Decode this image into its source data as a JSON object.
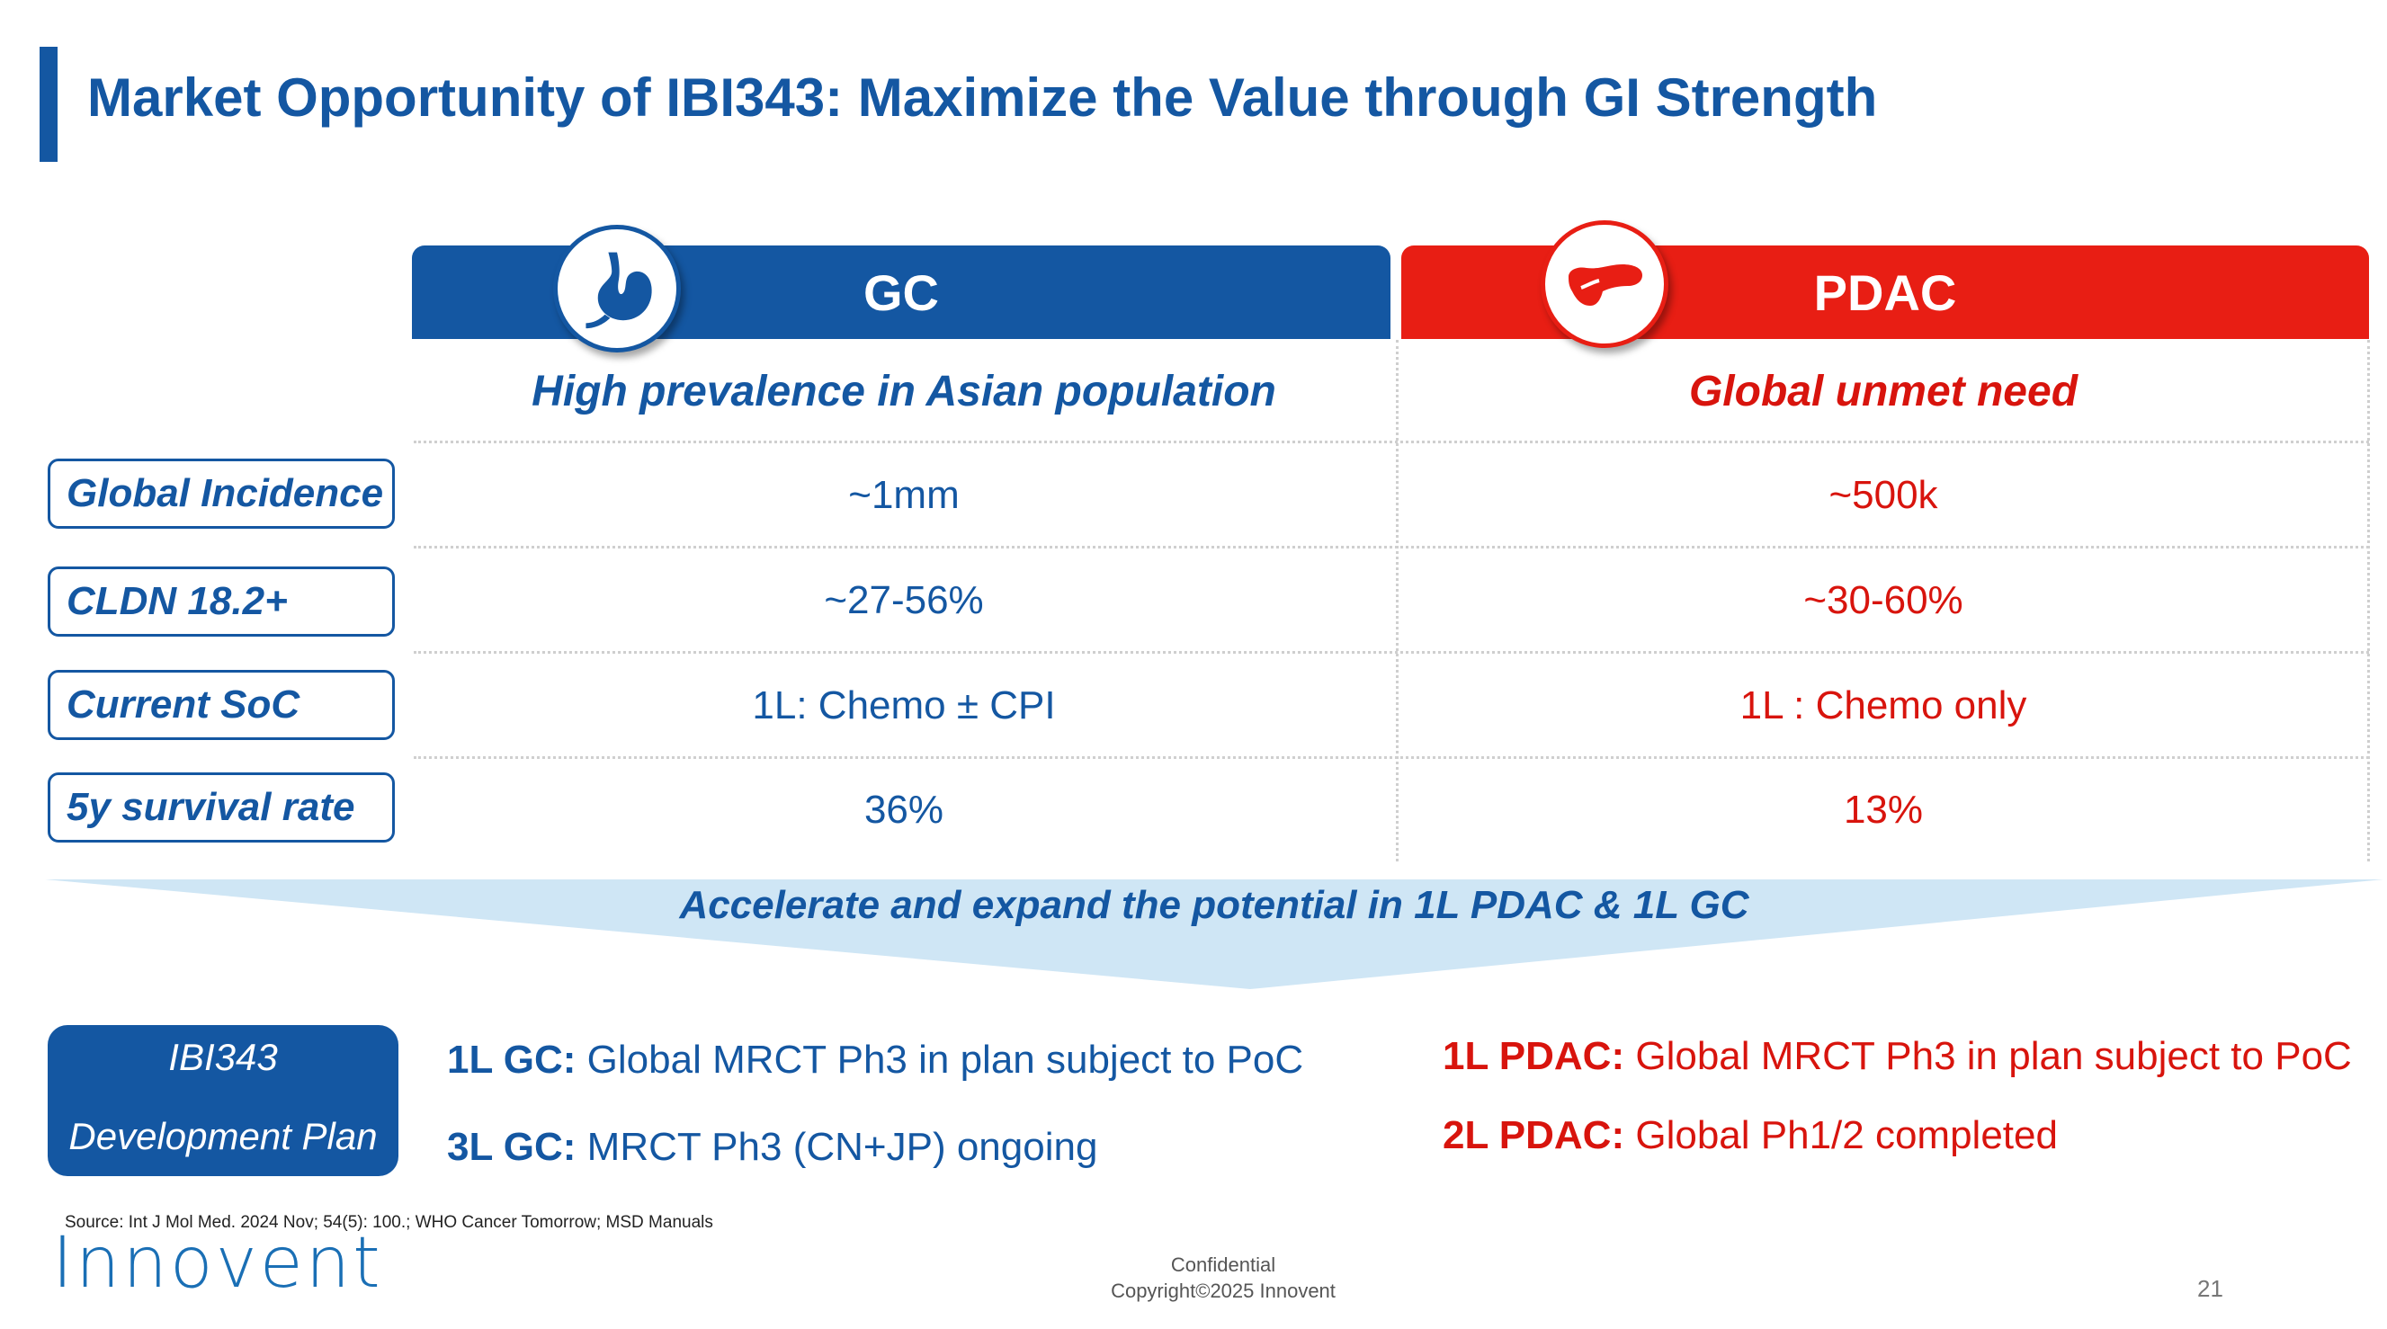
{
  "title": "Market Opportunity of IBI343: Maximize the Value through GI Strength",
  "colors": {
    "blue": "#1457a2",
    "red": "#e81e14",
    "chevron": "#cfe6f5"
  },
  "columns": {
    "gc": {
      "header": "GC",
      "subtitle": "High prevalence in Asian population",
      "icon": "stomach-icon"
    },
    "pdac": {
      "header": "PDAC",
      "subtitle": "Global unmet need",
      "icon": "pancreas-icon"
    }
  },
  "rows": [
    {
      "label": "Global Incidence",
      "gc": "~1mm",
      "pdac": "~500k"
    },
    {
      "label": "CLDN 18.2+",
      "gc": "~27-56%",
      "pdac": "~30-60%"
    },
    {
      "label": "Current SoC",
      "gc": "1L: Chemo ± CPI",
      "pdac": "1L : Chemo only"
    },
    {
      "label": "5y survival rate",
      "gc": "36%",
      "pdac": "13%"
    }
  ],
  "banner": "Accelerate and expand the potential in 1L PDAC & 1L GC",
  "plan": {
    "box_line1": "IBI343",
    "box_line2": "Development Plan",
    "gc": [
      {
        "label": "1L GC:",
        "text": "Global MRCT Ph3 in plan subject to PoC"
      },
      {
        "label": "3L GC:",
        "text": "MRCT Ph3 (CN+JP) ongoing"
      }
    ],
    "pdac": [
      {
        "label": "1L PDAC:",
        "text": "Global MRCT Ph3 in plan subject to PoC"
      },
      {
        "label": "2L PDAC:",
        "text": "Global Ph1/2 completed"
      }
    ]
  },
  "footer": {
    "source": "Source: Int J Mol Med. 2024 Nov; 54(5): 100.; WHO Cancer Tomorrow; MSD Manuals",
    "logo": "Innovent",
    "confidential": "Confidential",
    "copyright": "Copyright©2025  Innovent",
    "page": "21"
  }
}
